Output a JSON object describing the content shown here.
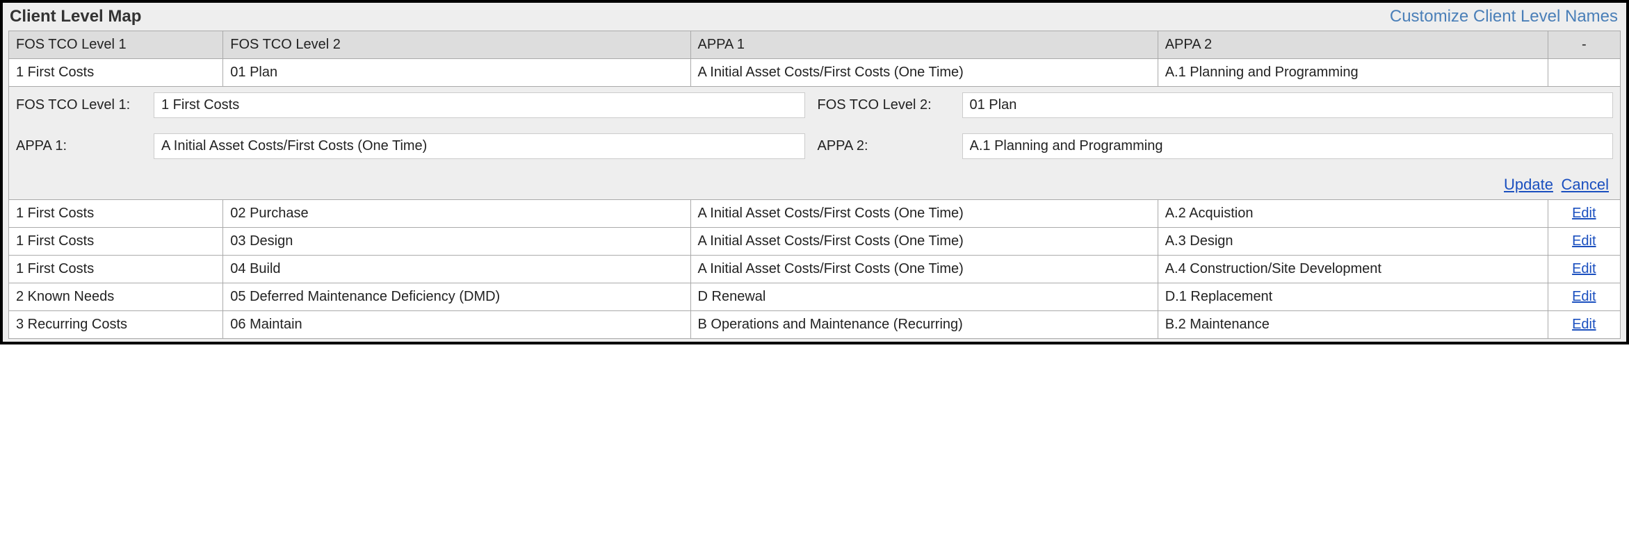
{
  "panel": {
    "title": "Client Level Map",
    "customize_link": "Customize Client Level Names"
  },
  "columns": {
    "col1": "FOS TCO Level 1",
    "col2": "FOS TCO Level 2",
    "col3": "APPA 1",
    "col4": "APPA 2",
    "col5": "-",
    "widths": {
      "col1": "13.3%",
      "col2": "29%",
      "col3": "29%",
      "col4": "24.2%",
      "col5": "4.5%"
    }
  },
  "rows": [
    {
      "level1": "1 First Costs",
      "level2": "01 Plan",
      "appa1": "A Initial Asset Costs/First Costs (One Time)",
      "appa2": "A.1 Planning and Programming"
    },
    {
      "level1": "1 First Costs",
      "level2": "02 Purchase",
      "appa1": "A Initial Asset Costs/First Costs (One Time)",
      "appa2": "A.2 Acquistion"
    },
    {
      "level1": "1 First Costs",
      "level2": "03 Design",
      "appa1": "A Initial Asset Costs/First Costs (One Time)",
      "appa2": "A.3 Design"
    },
    {
      "level1": "1 First Costs",
      "level2": "04 Build",
      "appa1": "A Initial Asset Costs/First Costs (One Time)",
      "appa2": "A.4 Construction/Site Development"
    },
    {
      "level1": "2 Known Needs",
      "level2": "05 Deferred Maintenance Deficiency (DMD)",
      "appa1": "D Renewal",
      "appa2": "D.1 Replacement"
    },
    {
      "level1": "3 Recurring Costs",
      "level2": "06 Maintain",
      "appa1": "B Operations and Maintenance (Recurring)",
      "appa2": "B.2 Maintenance"
    }
  ],
  "edit_panel": {
    "label_level1": "FOS TCO Level 1:",
    "label_level2": "FOS TCO Level 2:",
    "label_appa1": "APPA 1:",
    "label_appa2": "APPA 2:",
    "value_level1": "1 First Costs",
    "value_level2": "01 Plan",
    "value_appa1": "A Initial Asset Costs/First Costs (One Time)",
    "value_appa2": "A.1 Planning and Programming",
    "update_label": "Update",
    "cancel_label": "Cancel"
  },
  "edit_label": "Edit",
  "colors": {
    "panel_border": "#000000",
    "panel_bg": "#eeeeee",
    "header_bg": "#dddddd",
    "cell_bg": "#ffffff",
    "cell_border": "#aaaaaa",
    "link_blue": "#1a4fbf",
    "customize_blue": "#4a7fb8",
    "text": "#222222"
  }
}
